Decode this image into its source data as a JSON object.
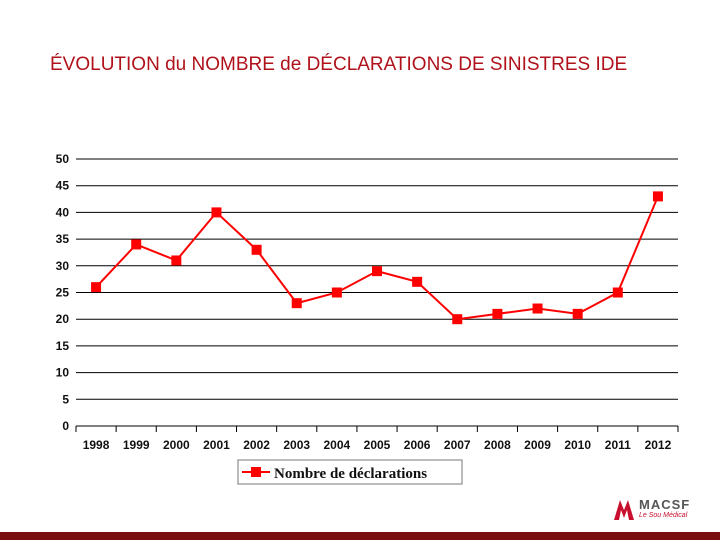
{
  "title": "ÉVOLUTION du NOMBRE de DÉCLARATIONS DE SINISTRES IDE",
  "chart_data": {
    "type": "line",
    "categories": [
      "1998",
      "1999",
      "2000",
      "2001",
      "2002",
      "2003",
      "2004",
      "2005",
      "2006",
      "2007",
      "2008",
      "2009",
      "2010",
      "2011",
      "2012"
    ],
    "series": [
      {
        "name": "Nombre de déclarations",
        "values": [
          26,
          34,
          31,
          40,
          33,
          23,
          25,
          29,
          27,
          20,
          21,
          22,
          21,
          25,
          43
        ],
        "color": "#ff0000"
      }
    ],
    "ylim": [
      0,
      50
    ],
    "yticks": [
      0,
      5,
      10,
      15,
      20,
      25,
      30,
      35,
      40,
      45,
      50
    ],
    "grid": true,
    "legend": "bottom"
  },
  "logo": {
    "name": "MACSF",
    "tagline": "Le Sou Médical",
    "color": "#c8102e"
  }
}
